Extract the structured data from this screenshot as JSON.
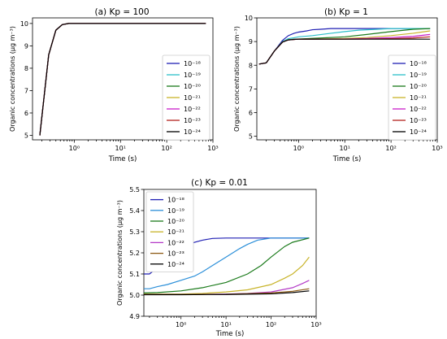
{
  "chart_data": [
    {
      "type": "line",
      "title": "(a) Kp  =  100",
      "xlabel": "Time (s)",
      "ylabel": "Organic concentrations (μg m⁻³)",
      "xscale": "log",
      "xlim": [
        0.125,
        1000
      ],
      "ylim": [
        4.8,
        10.25
      ],
      "xticks": [
        1,
        10,
        100,
        1000
      ],
      "xtick_labels": [
        "10⁰",
        "10¹",
        "10²",
        "10³"
      ],
      "yticks": [
        5,
        6,
        7,
        8,
        9,
        10
      ],
      "ytick_labels": [
        "5",
        "6",
        "7",
        "8",
        "9",
        "10"
      ],
      "grid": false,
      "legend_position": "center-right",
      "series": [
        {
          "name": "10⁻¹⁸",
          "color": "#1f1fb4",
          "x": [
            0.18,
            0.28,
            0.4,
            0.55,
            0.75,
            1.0,
            1.5,
            3,
            10,
            100,
            700
          ],
          "y": [
            5.0,
            8.6,
            9.7,
            9.95,
            10.0,
            10.0,
            10.0,
            10.0,
            10.0,
            10.0,
            10.0
          ]
        },
        {
          "name": "10⁻¹⁹",
          "color": "#2bbfc9",
          "x": [
            0.18,
            0.28,
            0.4,
            0.55,
            0.75,
            1.0,
            1.5,
            3,
            10,
            100,
            700
          ],
          "y": [
            5.0,
            8.6,
            9.7,
            9.95,
            10.0,
            10.0,
            10.0,
            10.0,
            10.0,
            10.0,
            10.0
          ]
        },
        {
          "name": "10⁻²⁰",
          "color": "#1a7a1a",
          "x": [
            0.18,
            0.28,
            0.4,
            0.55,
            0.75,
            1.0,
            1.5,
            3,
            10,
            100,
            700
          ],
          "y": [
            5.0,
            8.6,
            9.7,
            9.95,
            10.0,
            10.0,
            10.0,
            10.0,
            10.0,
            10.0,
            10.0
          ]
        },
        {
          "name": "10⁻²¹",
          "color": "#c8b42a",
          "x": [
            0.18,
            0.28,
            0.4,
            0.55,
            0.75,
            1.0,
            1.5,
            3,
            10,
            100,
            700
          ],
          "y": [
            5.0,
            8.6,
            9.7,
            9.95,
            10.0,
            10.0,
            10.0,
            10.0,
            10.0,
            10.0,
            10.0
          ]
        },
        {
          "name": "10⁻²²",
          "color": "#c81ec8",
          "x": [
            0.18,
            0.28,
            0.4,
            0.55,
            0.75,
            1.0,
            1.5,
            3,
            10,
            100,
            700
          ],
          "y": [
            5.0,
            8.6,
            9.7,
            9.95,
            10.0,
            10.0,
            10.0,
            10.0,
            10.0,
            10.0,
            10.0
          ]
        },
        {
          "name": "10⁻²³",
          "color": "#b4221e",
          "x": [
            0.18,
            0.28,
            0.4,
            0.55,
            0.75,
            1.0,
            1.5,
            3,
            10,
            100,
            700
          ],
          "y": [
            5.0,
            8.6,
            9.7,
            9.95,
            10.0,
            10.0,
            10.0,
            10.0,
            10.0,
            10.0,
            10.0
          ]
        },
        {
          "name": "10⁻²⁴",
          "color": "#000000",
          "x": [
            0.18,
            0.28,
            0.4,
            0.55,
            0.75,
            1.0,
            1.5,
            3,
            10,
            100,
            700
          ],
          "y": [
            5.0,
            8.6,
            9.7,
            9.95,
            10.0,
            10.0,
            10.0,
            10.0,
            10.0,
            10.0,
            10.0
          ]
        }
      ]
    },
    {
      "type": "line",
      "title": "(b) Kp  =  1",
      "xlabel": "Time (s)",
      "ylabel": "Organic concentrations (μg m⁻³)",
      "xscale": "log",
      "xlim": [
        0.125,
        1000
      ],
      "ylim": [
        4.85,
        10.0
      ],
      "xticks": [
        1,
        10,
        100,
        1000
      ],
      "xtick_labels": [
        "10⁰",
        "10¹",
        "10²",
        "10³"
      ],
      "yticks": [
        5,
        6,
        7,
        8,
        9,
        10
      ],
      "ytick_labels": [
        "5",
        "6",
        "7",
        "8",
        "9",
        "10"
      ],
      "grid": false,
      "legend_position": "lower-right",
      "series": [
        {
          "name": "10⁻¹⁸",
          "color": "#1f1fb4",
          "x": [
            0.14,
            0.2,
            0.3,
            0.45,
            0.6,
            0.8,
            1.0,
            1.5,
            2,
            3,
            5,
            10,
            30,
            100,
            700
          ],
          "y": [
            8.05,
            8.1,
            8.6,
            9.05,
            9.25,
            9.35,
            9.4,
            9.45,
            9.5,
            9.52,
            9.55,
            9.55,
            9.55,
            9.55,
            9.55
          ]
        },
        {
          "name": "10⁻¹⁹",
          "color": "#2bbfc9",
          "x": [
            0.14,
            0.2,
            0.3,
            0.45,
            0.6,
            0.8,
            1.0,
            2,
            5,
            10,
            20,
            50,
            100,
            700
          ],
          "y": [
            8.05,
            8.1,
            8.6,
            9.0,
            9.12,
            9.16,
            9.2,
            9.25,
            9.35,
            9.42,
            9.48,
            9.52,
            9.55,
            9.55
          ]
        },
        {
          "name": "10⁻²⁰",
          "color": "#1a7a1a",
          "x": [
            0.14,
            0.2,
            0.3,
            0.45,
            0.6,
            0.8,
            1.0,
            3,
            10,
            30,
            100,
            300,
            700
          ],
          "y": [
            8.05,
            8.1,
            8.6,
            8.98,
            9.08,
            9.1,
            9.11,
            9.15,
            9.2,
            9.3,
            9.42,
            9.52,
            9.55
          ]
        },
        {
          "name": "10⁻²¹",
          "color": "#c8b42a",
          "x": [
            0.14,
            0.2,
            0.3,
            0.45,
            0.6,
            0.8,
            1.0,
            3,
            10,
            30,
            100,
            300,
            700
          ],
          "y": [
            8.05,
            8.1,
            8.6,
            8.98,
            9.07,
            9.09,
            9.1,
            9.11,
            9.13,
            9.17,
            9.25,
            9.35,
            9.45
          ]
        },
        {
          "name": "10⁻²²",
          "color": "#c81ec8",
          "x": [
            0.14,
            0.2,
            0.3,
            0.45,
            0.6,
            0.8,
            1.0,
            10,
            30,
            100,
            300,
            700
          ],
          "y": [
            8.05,
            8.1,
            8.6,
            8.98,
            9.07,
            9.09,
            9.1,
            9.11,
            9.13,
            9.17,
            9.22,
            9.3
          ]
        },
        {
          "name": "10⁻²³",
          "color": "#b4221e",
          "x": [
            0.14,
            0.2,
            0.3,
            0.45,
            0.6,
            0.8,
            1.0,
            10,
            100,
            300,
            700
          ],
          "y": [
            8.05,
            8.1,
            8.6,
            8.98,
            9.07,
            9.09,
            9.1,
            9.1,
            9.12,
            9.15,
            9.2
          ]
        },
        {
          "name": "10⁻²⁴",
          "color": "#000000",
          "x": [
            0.14,
            0.2,
            0.3,
            0.45,
            0.6,
            0.8,
            1.0,
            10,
            100,
            700
          ],
          "y": [
            8.05,
            8.1,
            8.6,
            8.98,
            9.07,
            9.09,
            9.1,
            9.1,
            9.1,
            9.1
          ]
        }
      ]
    },
    {
      "type": "line",
      "title": "(c) Kp  =  0.01",
      "xlabel": "Time (s)",
      "ylabel": "Organic concentrations (μg m⁻³)",
      "xscale": "log",
      "xlim": [
        0.15,
        1000
      ],
      "ylim": [
        4.9,
        5.5
      ],
      "xticks": [
        1,
        10,
        100,
        1000
      ],
      "xtick_labels": [
        "10⁰",
        "10¹",
        "10²",
        "10³"
      ],
      "yticks": [
        4.9,
        5.0,
        5.1,
        5.2,
        5.3,
        5.4,
        5.5
      ],
      "ytick_labels": [
        "4.9",
        "5.0",
        "5.1",
        "5.2",
        "5.3",
        "5.4",
        "5.5"
      ],
      "grid": false,
      "legend_position": "upper-left",
      "series": [
        {
          "name": "10⁻¹⁸",
          "color": "#1f1fb4",
          "x": [
            0.15,
            0.2,
            0.3,
            0.5,
            0.8,
            1.0,
            1.5,
            2,
            3,
            5,
            10,
            30,
            100,
            700
          ],
          "y": [
            5.1,
            5.1,
            5.13,
            5.17,
            5.2,
            5.215,
            5.235,
            5.25,
            5.26,
            5.268,
            5.27,
            5.27,
            5.27,
            5.27
          ]
        },
        {
          "name": "10⁻¹⁹",
          "color": "#2b8fd9",
          "x": [
            0.15,
            0.2,
            0.3,
            0.5,
            1.0,
            2,
            3,
            5,
            10,
            20,
            30,
            50,
            100,
            700
          ],
          "y": [
            5.03,
            5.03,
            5.04,
            5.05,
            5.07,
            5.09,
            5.11,
            5.14,
            5.18,
            5.22,
            5.24,
            5.26,
            5.27,
            5.27
          ]
        },
        {
          "name": "10⁻²⁰",
          "color": "#1a7a1a",
          "x": [
            0.15,
            0.3,
            1.0,
            3,
            10,
            30,
            60,
            100,
            200,
            300,
            700
          ],
          "y": [
            5.01,
            5.012,
            5.02,
            5.035,
            5.06,
            5.1,
            5.14,
            5.18,
            5.23,
            5.25,
            5.27
          ]
        },
        {
          "name": "10⁻²¹",
          "color": "#c8b42a",
          "x": [
            0.15,
            1.0,
            3,
            10,
            30,
            100,
            200,
            300,
            500,
            700
          ],
          "y": [
            5.005,
            5.005,
            5.008,
            5.015,
            5.025,
            5.05,
            5.08,
            5.1,
            5.14,
            5.18
          ]
        },
        {
          "name": "10⁻²²",
          "color": "#b43cc8",
          "x": [
            0.15,
            1.0,
            10,
            30,
            100,
            300,
            500,
            700
          ],
          "y": [
            5.003,
            5.003,
            5.005,
            5.008,
            5.015,
            5.035,
            5.055,
            5.07
          ]
        },
        {
          "name": "10⁻²³",
          "color": "#8c5a14",
          "x": [
            0.15,
            1.0,
            10,
            100,
            300,
            700
          ],
          "y": [
            5.003,
            5.003,
            5.004,
            5.01,
            5.018,
            5.03
          ]
        },
        {
          "name": "10⁻²⁴",
          "color": "#000000",
          "x": [
            0.15,
            1.0,
            10,
            100,
            300,
            700
          ],
          "y": [
            5.002,
            5.002,
            5.003,
            5.006,
            5.012,
            5.02
          ]
        }
      ]
    }
  ]
}
